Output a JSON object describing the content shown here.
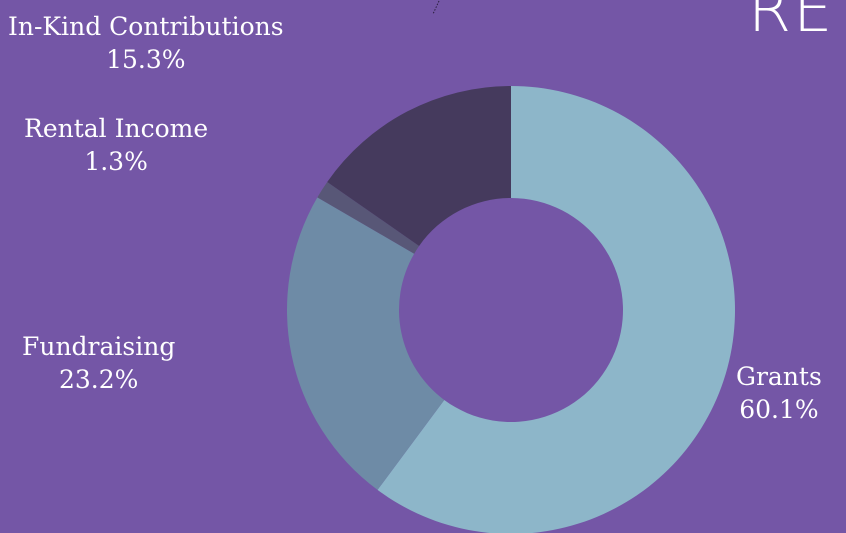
{
  "chart_data": {
    "type": "donut",
    "title_fragment": "RE",
    "segments": [
      {
        "name": "Grants",
        "value": 60.1,
        "label": "60.1%",
        "color": "#8db6c9"
      },
      {
        "name": "Fundraising",
        "value": 23.2,
        "label": "23.2%",
        "color": "#6e8ba6"
      },
      {
        "name": "Rental Income",
        "value": 1.3,
        "label": "1.3%",
        "color": "#585777"
      },
      {
        "name": "In-Kind Contributions",
        "value": 15.3,
        "label": "15.3%",
        "color": "#453a5d"
      }
    ],
    "start_angle_deg": 0,
    "direction": "clockwise"
  }
}
